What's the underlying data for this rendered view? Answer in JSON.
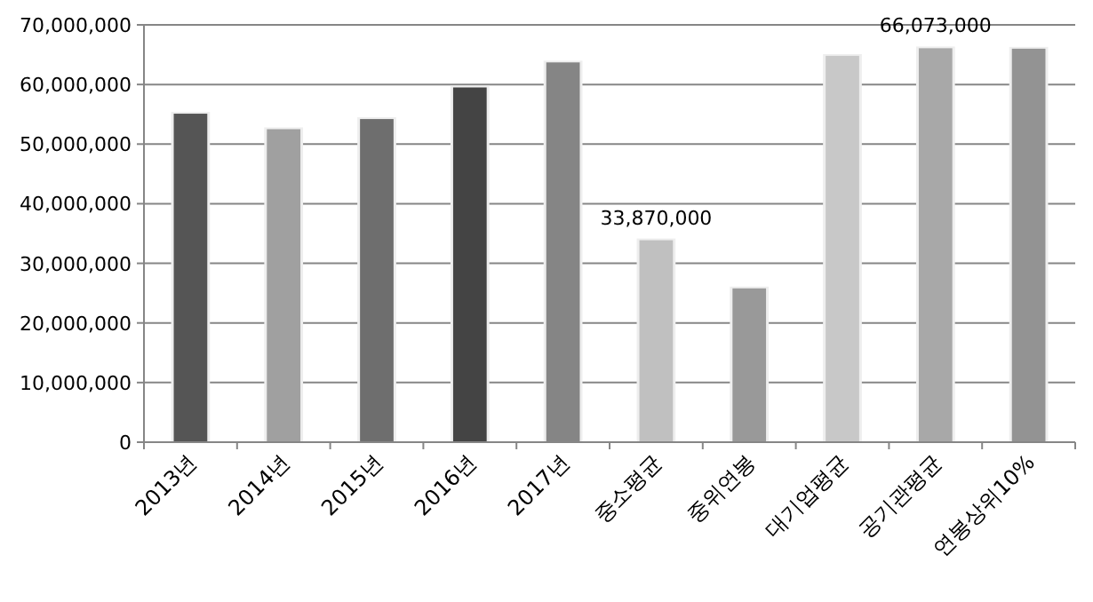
{
  "chart_data": {
    "type": "bar",
    "categories": [
      "2013년",
      "2014년",
      "2015년",
      "2016년",
      "2017년",
      "중소평균",
      "중위연봉",
      "대기업평균",
      "공기관평균",
      "연봉상위10%"
    ],
    "values": [
      55100000,
      52500000,
      54200000,
      59500000,
      63700000,
      33870000,
      25800000,
      64800000,
      66073000,
      66000000
    ],
    "colors": [
      "#555555",
      "#a0a0a0",
      "#6e6e6e",
      "#444444",
      "#858585",
      "#c0c0c0",
      "#999999",
      "#c8c8c8",
      "#a8a8a8",
      "#939393"
    ],
    "value_labels": [
      null,
      null,
      null,
      null,
      null,
      "33,870,000",
      null,
      null,
      "66,073,000",
      null
    ],
    "ylim": [
      0,
      70000000
    ],
    "yticks": [
      0,
      {
        "value": 10000000,
        "label": "10,000,000"
      },
      {
        "value": 20000000,
        "label": "20,000,000"
      },
      {
        "value": 30000000,
        "label": "30,000,000"
      },
      {
        "value": 40000000,
        "label": "40,000,000"
      },
      {
        "value": 50000000,
        "label": "50,000,000"
      },
      {
        "value": 60000000,
        "label": "60,000,000"
      },
      {
        "value": 70000000,
        "label": "70,000,000"
      }
    ],
    "grid": "y"
  }
}
